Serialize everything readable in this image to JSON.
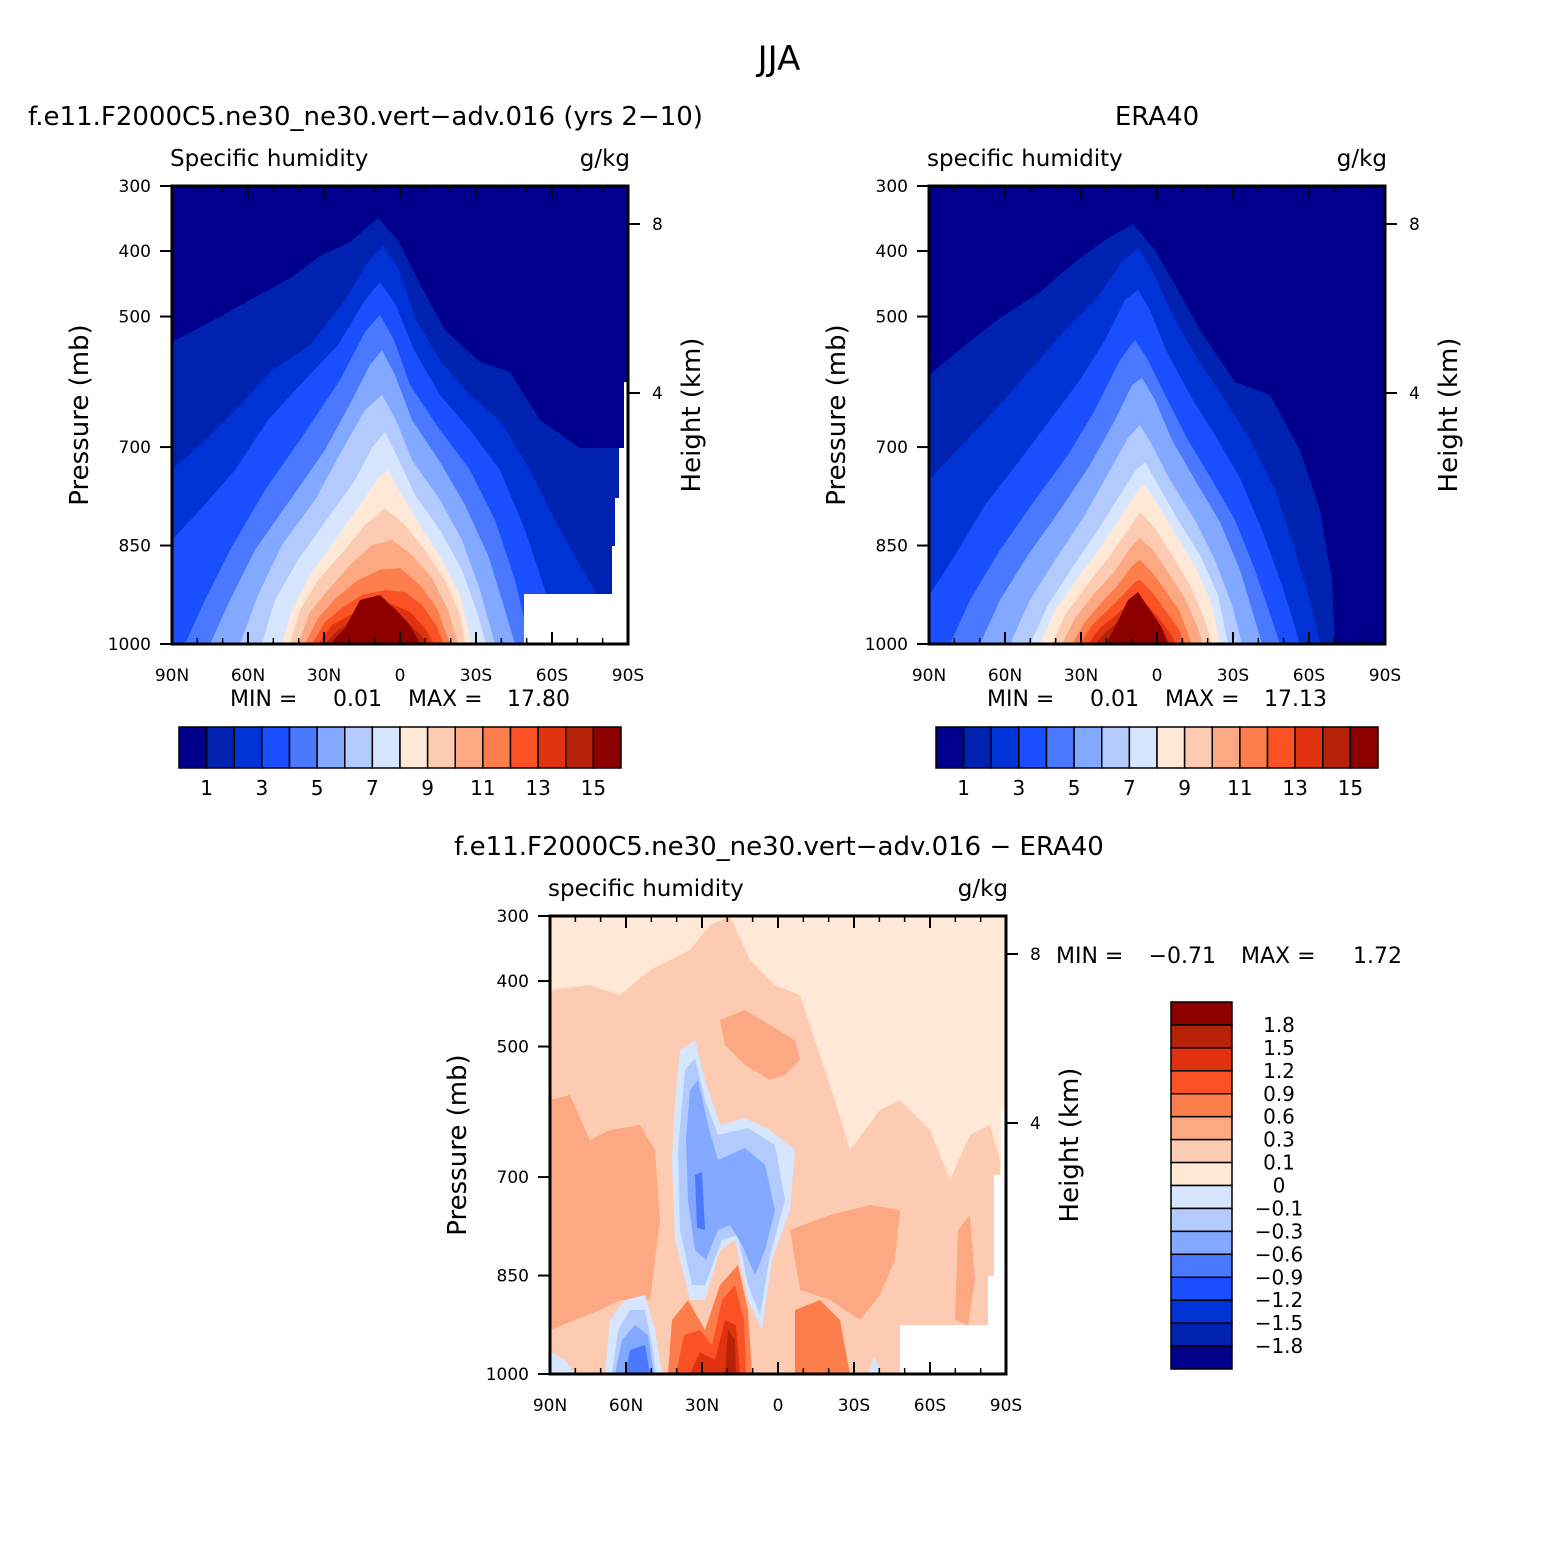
{
  "page_title": "JJA",
  "colors": {
    "abs_levels": [
      "#00008c",
      "#0022b0",
      "#0033d6",
      "#1a4fff",
      "#4a78ff",
      "#82a8ff",
      "#b3caff",
      "#d6e6fe",
      "#ffe9d6",
      "#fdcbb1",
      "#fca883",
      "#fb7e4c",
      "#fb5225",
      "#e0320e",
      "#b52208",
      "#8c0000"
    ],
    "diff_levels": [
      "#00008c",
      "#0022b0",
      "#0033d6",
      "#1a4fff",
      "#4a78ff",
      "#82a8ff",
      "#b3caff",
      "#d6e6fe",
      "#ffe9d6",
      "#fdcbb1",
      "#fca883",
      "#fb7e4c",
      "#fb5225",
      "#e0320e",
      "#b52208",
      "#8c0000"
    ]
  },
  "chart_data": [
    {
      "type": "heatmap",
      "case_title": "f.e11.F2000C5.ne30_ne30.vert−adv.016 (yrs 2−10)",
      "left_title": "Specific humidity",
      "right_title": "g/kg",
      "ylabel": "Pressure (mb)",
      "y2label": "Height (km)",
      "x_ticks": [
        "90N",
        "60N",
        "30N",
        "0",
        "30S",
        "60S",
        "90S"
      ],
      "y_ticks": [
        "300",
        "400",
        "500",
        "700",
        "850",
        "1000"
      ],
      "y2_ticks": [
        "8",
        "4"
      ],
      "min_label": "MIN =",
      "min_value": "0.01",
      "max_label": "MAX =",
      "max_value": "17.80",
      "colorbar_labels": [
        "1",
        "3",
        "5",
        "7",
        "9",
        "11",
        "13",
        "15"
      ]
    },
    {
      "type": "heatmap",
      "case_title": "ERA40",
      "left_title": "specific humidity",
      "right_title": "g/kg",
      "ylabel": "Pressure (mb)",
      "y2label": "Height (km)",
      "x_ticks": [
        "90N",
        "60N",
        "30N",
        "0",
        "30S",
        "60S",
        "90S"
      ],
      "y_ticks": [
        "300",
        "400",
        "500",
        "700",
        "850",
        "1000"
      ],
      "y2_ticks": [
        "8",
        "4"
      ],
      "min_label": "MIN =",
      "min_value": "0.01",
      "max_label": "MAX =",
      "max_value": "17.13",
      "colorbar_labels": [
        "1",
        "3",
        "5",
        "7",
        "9",
        "11",
        "13",
        "15"
      ]
    },
    {
      "type": "heatmap",
      "case_title": "f.e11.F2000C5.ne30_ne30.vert−adv.016 − ERA40",
      "left_title": "specific humidity",
      "right_title": "g/kg",
      "ylabel": "Pressure (mb)",
      "y2label": "Height (km)",
      "x_ticks": [
        "90N",
        "60N",
        "30N",
        "0",
        "30S",
        "60S",
        "90S"
      ],
      "y_ticks": [
        "300",
        "400",
        "500",
        "700",
        "850",
        "1000"
      ],
      "y2_ticks": [
        "8",
        "4"
      ],
      "min_label": "MIN =",
      "min_value": "−0.71",
      "max_label": "MAX =",
      "max_value": "1.72",
      "colorbar_labels": [
        "1.8",
        "1.5",
        "1.2",
        "0.9",
        "0.6",
        "0.3",
        "0.1",
        "0",
        "−0.1",
        "−0.3",
        "−0.6",
        "−0.9",
        "−1.2",
        "−1.5",
        "−1.8"
      ]
    }
  ]
}
